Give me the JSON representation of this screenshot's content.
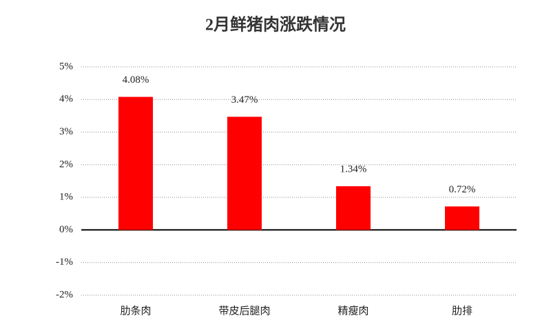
{
  "chart_data": {
    "type": "bar",
    "title": "2月鲜猪肉涨跌情况",
    "categories": [
      "肋条肉",
      "带皮后腿肉",
      "精瘦肉",
      "肋排"
    ],
    "values": [
      4.08,
      3.47,
      1.34,
      0.72
    ],
    "value_labels": [
      "4.08%",
      "3.47%",
      "1.34%",
      "0.72%"
    ],
    "color": "#ff0000",
    "ylim": [
      -2,
      5
    ],
    "yticks": [
      {
        "value": -2,
        "label": "-2%"
      },
      {
        "value": -1,
        "label": "-1%"
      },
      {
        "value": 0,
        "label": "0%"
      },
      {
        "value": 1,
        "label": "1%"
      },
      {
        "value": 2,
        "label": "2%"
      },
      {
        "value": 3,
        "label": "3%"
      },
      {
        "value": 4,
        "label": "4%"
      },
      {
        "value": 5,
        "label": "5%"
      }
    ],
    "grid": true
  }
}
